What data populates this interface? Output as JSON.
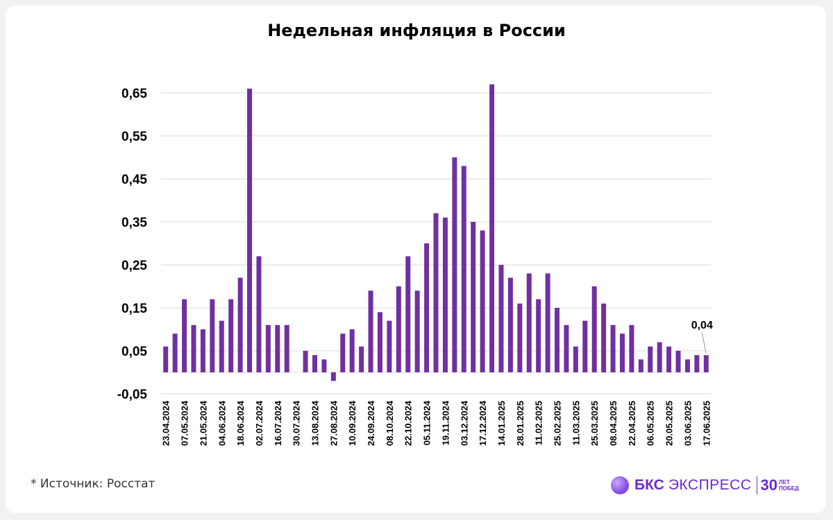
{
  "title": "Недельная инфляция в России",
  "source": "*  Источник: Росстат",
  "logo": {
    "brand": "БКС",
    "name": "ЭКСПРЕСС",
    "years": "30",
    "years_top": "ЛЕТ",
    "years_bottom": "ПОБЕД"
  },
  "colors": {
    "bar": "#7030a0",
    "grid": "#d9d9d9",
    "axis_text": "#000000"
  },
  "chart_data": {
    "type": "bar",
    "title": "Недельная инфляция в России",
    "xlabel": "",
    "ylabel": "",
    "ylim": [
      -0.05,
      0.7
    ],
    "grid": true,
    "y_ticks": [
      -0.05,
      0.05,
      0.15,
      0.25,
      0.35,
      0.45,
      0.55,
      0.65
    ],
    "y_tick_labels": [
      "-0,05",
      "0,05",
      "0,15",
      "0,25",
      "0,35",
      "0,45",
      "0,55",
      "0,65"
    ],
    "categories": [
      "23.04.2024",
      "30.04.2024",
      "07.05.2024",
      "14.05.2024",
      "21.05.2024",
      "28.05.2024",
      "04.06.2024",
      "11.06.2024",
      "18.06.2024",
      "25.06.2024",
      "02.07.2024",
      "09.07.2024",
      "16.07.2024",
      "23.07.2024",
      "30.07.2024",
      "06.08.2024",
      "13.08.2024",
      "20.08.2024",
      "27.08.2024",
      "03.09.2024",
      "10.09.2024",
      "17.09.2024",
      "24.09.2024",
      "01.10.2024",
      "08.10.2024",
      "15.10.2024",
      "22.10.2024",
      "29.10.2024",
      "05.11.2024",
      "12.11.2024",
      "19.11.2024",
      "26.11.2024",
      "03.12.2024",
      "10.12.2024",
      "17.12.2024",
      "24.12.2024",
      "14.01.2025",
      "21.01.2025",
      "28.01.2025",
      "04.02.2025",
      "11.02.2025",
      "18.02.2025",
      "25.02.2025",
      "04.03.2025",
      "11.03.2025",
      "18.03.2025",
      "25.03.2025",
      "01.04.2025",
      "08.04.2025",
      "15.04.2025",
      "22.04.2025",
      "29.04.2025",
      "06.05.2025",
      "13.05.2025",
      "20.05.2025",
      "27.05.2025",
      "03.06.2025",
      "10.06.2025",
      "17.06.2025"
    ],
    "visible_tick_labels": [
      "23.04.2024",
      "07.05.2024",
      "21.05.2024",
      "04.06.2024",
      "18.06.2024",
      "02.07.2024",
      "16.07.2024",
      "30.07.2024",
      "13.08.2024",
      "27.08.2024",
      "10.09.2024",
      "24.09.2024",
      "08.10.2024",
      "22.10.2024",
      "05.11.2024",
      "19.11.2024",
      "03.12.2024",
      "17.12.2024",
      "14.01.2025",
      "28.01.2025",
      "11.02.2025",
      "25.02.2025",
      "11.03.2025",
      "25.03.2025",
      "08.04.2025",
      "22.04.2025",
      "06.05.2025",
      "20.05.2025",
      "03.06.2025",
      "17.06.2025"
    ],
    "series": [
      {
        "values": [
          0.06,
          0.09,
          0.17,
          0.11,
          0.1,
          0.17,
          0.12,
          0.17,
          0.22,
          0.66,
          0.27,
          0.11,
          0.11,
          0.11,
          0.0,
          0.05,
          0.04,
          0.03,
          -0.02,
          0.09,
          0.1,
          0.06,
          0.19,
          0.14,
          0.12,
          0.2,
          0.27,
          0.19,
          0.3,
          0.37,
          0.36,
          0.5,
          0.48,
          0.35,
          0.33,
          0.67,
          0.25,
          0.22,
          0.16,
          0.23,
          0.17,
          0.23,
          0.15,
          0.11,
          0.06,
          0.12,
          0.2,
          0.16,
          0.11,
          0.09,
          0.11,
          0.03,
          0.06,
          0.07,
          0.06,
          0.05,
          0.03,
          0.04,
          0.04
        ]
      }
    ],
    "annotations": [
      {
        "label": "0,04",
        "category": "17.06.2025",
        "value": 0.04
      }
    ]
  }
}
